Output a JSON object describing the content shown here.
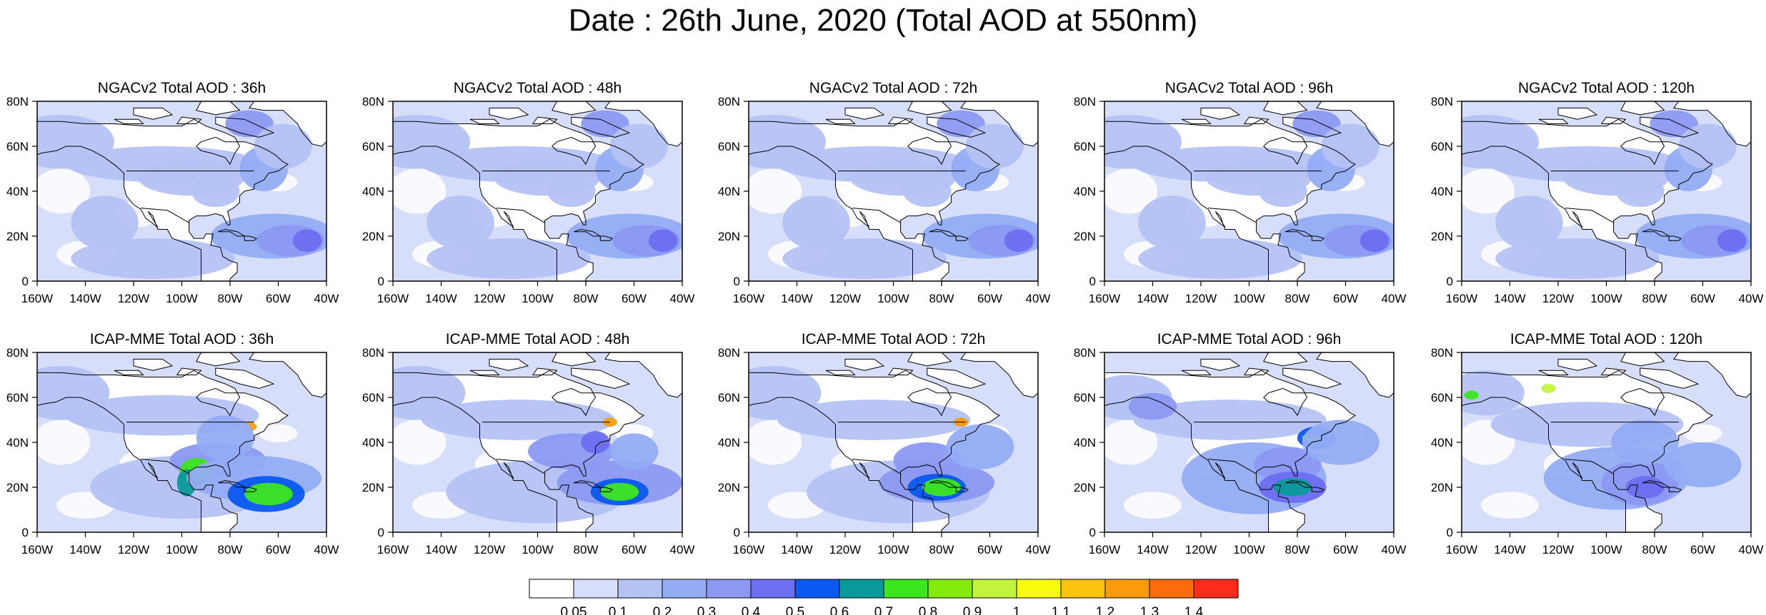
{
  "page": {
    "title": "Date : 26th June, 2020 (Total AOD at 550nm)"
  },
  "axes": {
    "lon_ticks": [
      "160W",
      "140W",
      "120W",
      "100W",
      "80W",
      "60W",
      "40W"
    ],
    "lat_ticks": [
      "80N",
      "60N",
      "40N",
      "20N",
      "0"
    ]
  },
  "rows": [
    {
      "model": "NGACv2",
      "panels": [
        {
          "title": "NGACv2 Total AOD : 36h",
          "lead_hours": 36
        },
        {
          "title": "NGACv2 Total AOD : 48h",
          "lead_hours": 48
        },
        {
          "title": "NGACv2 Total AOD : 72h",
          "lead_hours": 72
        },
        {
          "title": "NGACv2 Total AOD : 96h",
          "lead_hours": 96
        },
        {
          "title": "NGACv2 Total AOD : 120h",
          "lead_hours": 120
        }
      ]
    },
    {
      "model": "ICAP-MME",
      "panels": [
        {
          "title": "ICAP-MME Total AOD : 36h",
          "lead_hours": 36
        },
        {
          "title": "ICAP-MME Total AOD : 48h",
          "lead_hours": 48
        },
        {
          "title": "ICAP-MME Total AOD : 72h",
          "lead_hours": 72
        },
        {
          "title": "ICAP-MME Total AOD : 96h",
          "lead_hours": 96
        },
        {
          "title": "ICAP-MME Total AOD : 120h",
          "lead_hours": 120
        }
      ]
    }
  ],
  "colorbar": {
    "labels": [
      "0.05",
      "0.1",
      "0.2",
      "0.3",
      "0.4",
      "0.5",
      "0.6",
      "0.7",
      "0.8",
      "0.9",
      "1",
      "1.1",
      "1.2",
      "1.3",
      "1.4"
    ],
    "colors": [
      "#ffffff",
      "#d6defa",
      "#b4c2f4",
      "#94acf4",
      "#8b99f2",
      "#6b6ff0",
      "#0a59f0",
      "#0a9a9a",
      "#3ce61c",
      "#84ea0c",
      "#c2f43c",
      "#fafa0c",
      "#fcc40c",
      "#fc9c0c",
      "#fc6c0c",
      "#fc2c1c"
    ]
  },
  "styles": {
    "ocean_fill": "#d6defa",
    "land_fill": "#ffffff",
    "coastline": "#000000"
  }
}
